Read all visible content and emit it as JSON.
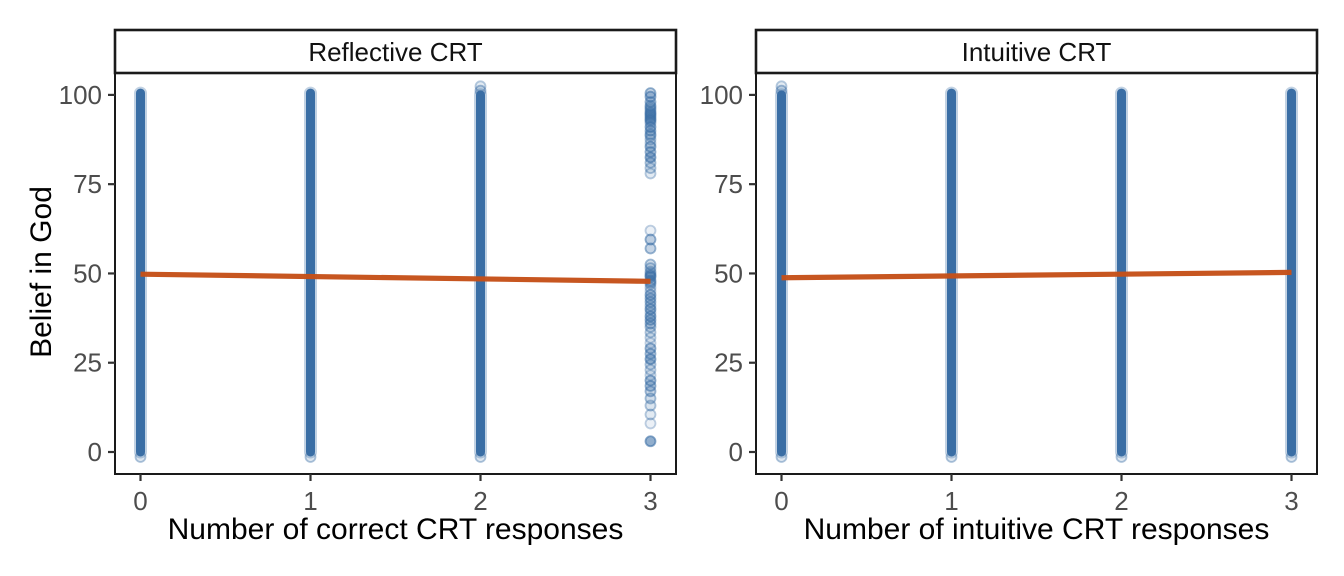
{
  "labels": {
    "y_axis_title": "Belief in God",
    "left_strip": "Reflective CRT",
    "right_strip": "Intuitive CRT",
    "left_x_title": "Number of correct CRT responses",
    "right_x_title": "Number of intuitive CRT responses"
  },
  "style": {
    "background": "#FFFFFF",
    "point_color": "#3A6EA5",
    "trend_line_color": "#C65119",
    "panel_border_color": "#1A1A1A",
    "strip_border_color": "#1A1A1A",
    "tick_mark_color": "#333333",
    "tick_label_color": "#4D4D4D",
    "title_color": "#000000"
  },
  "chart_data": [
    {
      "type": "scatter",
      "facet_label": "Reflective CRT",
      "xlabel": "Number of correct CRT responses",
      "ylabel": "Belief in God",
      "x_ticks": [
        0,
        1,
        2,
        3
      ],
      "y_ticks": [
        100,
        75,
        50,
        25,
        0
      ],
      "xlim": [
        -0.15,
        3.15
      ],
      "ylim": [
        -6,
        106
      ],
      "grid": "off",
      "legend": "none",
      "point_columns": [
        {
          "x": 0,
          "density": "high",
          "y_range": [
            0,
            100.5
          ],
          "edge_fade": {
            "top": false,
            "bottom": true
          }
        },
        {
          "x": 1,
          "density": "high",
          "y_range": [
            0,
            100.5
          ],
          "edge_fade": {
            "top": false,
            "bottom": true
          }
        },
        {
          "x": 2,
          "density": "high",
          "y_range": [
            0,
            100
          ],
          "edge_fade": {
            "top": true,
            "bottom": true
          }
        },
        {
          "x": 3,
          "density": "sparse",
          "points": [
            100.5,
            99.5,
            98,
            97,
            96.5,
            96,
            95.5,
            95,
            94.5,
            94,
            93.5,
            93,
            92.5,
            92,
            91,
            90,
            89,
            88.5,
            87.5,
            86.5,
            85.5,
            84,
            82.5,
            81,
            79.5,
            78,
            62,
            59.5,
            57,
            52.5,
            51.5,
            50.5,
            50,
            49.5,
            49,
            48,
            47.5,
            47,
            46,
            45,
            44,
            43,
            42,
            41,
            40,
            39,
            38,
            37,
            36,
            35,
            33.5,
            32,
            30.5,
            29,
            27.5,
            26,
            24.5,
            23,
            21.5,
            20,
            18.5,
            17,
            15,
            13,
            10.5,
            8,
            3
          ]
        }
      ],
      "regression_line": {
        "x_start": 0,
        "y_start": 49.8,
        "x_end": 3,
        "y_end": 47.8
      }
    },
    {
      "type": "scatter",
      "facet_label": "Intuitive CRT",
      "xlabel": "Number of intuitive CRT responses",
      "ylabel": "Belief in God",
      "x_ticks": [
        0,
        1,
        2,
        3
      ],
      "y_ticks": [
        100,
        75,
        50,
        25,
        0
      ],
      "xlim": [
        -0.15,
        3.15
      ],
      "ylim": [
        -6,
        106
      ],
      "grid": "off",
      "legend": "none",
      "point_columns": [
        {
          "x": 0,
          "density": "high",
          "y_range": [
            0,
            100
          ],
          "edge_fade": {
            "top": true,
            "bottom": true
          }
        },
        {
          "x": 1,
          "density": "high",
          "y_range": [
            0,
            100.5
          ],
          "edge_fade": {
            "top": false,
            "bottom": true
          }
        },
        {
          "x": 2,
          "density": "high",
          "y_range": [
            0,
            100.5
          ],
          "edge_fade": {
            "top": false,
            "bottom": true
          }
        },
        {
          "x": 3,
          "density": "high",
          "y_range": [
            0,
            100.5
          ],
          "edge_fade": {
            "top": false,
            "bottom": true
          }
        }
      ],
      "regression_line": {
        "x_start": 0,
        "y_start": 48.8,
        "x_end": 3,
        "y_end": 50.3
      }
    }
  ]
}
